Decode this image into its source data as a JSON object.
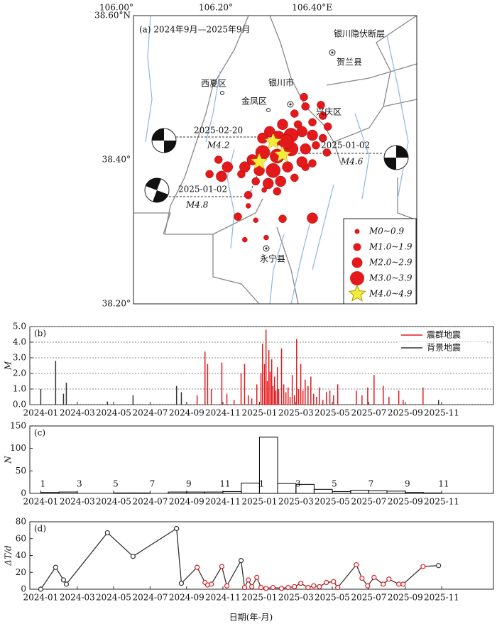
{
  "chart_data": [
    {
      "type": "scatter",
      "title": "(a) 2024年9月—2025年9月",
      "xlim": [
        106.0,
        106.57
      ],
      "ylim": [
        38.2,
        38.6
      ],
      "xticks": [
        {
          "value": 106.0,
          "label": "106.00°"
        },
        {
          "value": 106.2,
          "label": "106.20°"
        },
        {
          "value": 106.4,
          "label": "106.40°E"
        }
      ],
      "yticks": [
        {
          "value": 38.6,
          "label": "38.60°N"
        },
        {
          "value": 38.4,
          "label": "38.40°"
        },
        {
          "value": 38.2,
          "label": "38.20°"
        }
      ],
      "place_labels": [
        "银川隐伏断层",
        "贺兰县",
        "西夏区",
        "银川市",
        "金凤区",
        "兴庆区",
        "永宁县"
      ],
      "event_labels": [
        "2025-02-20",
        "M4.2",
        "2025-01-02",
        "M4.6",
        "2025-01-02",
        "M4.8"
      ],
      "legend": "lower right",
      "series": [
        {
          "name": "M0~0.9",
          "color": "#e3191c",
          "x": [
            106.231,
            106.246,
            106.224,
            106.267,
            106.263
          ],
          "y": [
            38.336,
            38.316,
            38.289,
            38.292,
            38.358
          ]
        },
        {
          "name": "M1.0~1.9",
          "color": "#e3191c",
          "x": [
            106.343,
            106.346,
            106.377,
            106.381,
            106.36,
            106.324,
            106.331,
            106.381,
            106.367,
            106.36,
            106.324,
            106.246,
            106.217,
            106.171,
            106.153,
            106.21,
            106.3,
            106.346,
            106.389,
            106.289,
            106.231,
            106.391
          ],
          "y": [
            38.487,
            38.474,
            38.476,
            38.461,
            38.452,
            38.464,
            38.449,
            38.43,
            38.42,
            38.395,
            38.375,
            38.37,
            38.38,
            38.4,
            38.38,
            38.321,
            38.318,
            38.39,
            38.41,
            38.356,
            38.351,
            38.446
          ]
        },
        {
          "name": "M2.0~2.9",
          "color": "#e3191c",
          "x": [
            106.3,
            106.274,
            106.26,
            106.339,
            106.36,
            106.346,
            106.239,
            106.224,
            106.253,
            106.31,
            106.339,
            106.296,
            106.271,
            106.189,
            106.177,
            106.36
          ],
          "y": [
            38.449,
            38.439,
            38.43,
            38.439,
            38.434,
            38.415,
            38.4,
            38.39,
            38.385,
            38.39,
            38.397,
            38.37,
            38.367,
            38.39,
            38.377,
            38.319
          ]
        },
        {
          "name": "M3.0~3.9",
          "color": "#e3191c",
          "x": [
            106.291,
            106.317,
            106.317,
            106.289,
            106.26,
            106.281,
            106.307
          ],
          "y": [
            38.43,
            38.434,
            38.415,
            38.405,
            38.41,
            38.385,
            38.425
          ]
        },
        {
          "name": "M4.0~4.9",
          "color": "#f2ee3a",
          "x": [
            106.281,
            106.3,
            106.253
          ],
          "y": [
            38.425,
            38.407,
            38.397
          ]
        }
      ]
    },
    {
      "type": "bar",
      "title": "(b)",
      "ylabel": "M",
      "xlim": [
        2023.95,
        2026.07
      ],
      "ylim": [
        0,
        5
      ],
      "xticks": [
        {
          "value": 2024.0,
          "label": "2024-01"
        },
        {
          "value": 2024.167,
          "label": "2024-03"
        },
        {
          "value": 2024.333,
          "label": "2024-05"
        },
        {
          "value": 2024.5,
          "label": "2024-07"
        },
        {
          "value": 2024.667,
          "label": "2024-09"
        },
        {
          "value": 2024.833,
          "label": "2024-11"
        },
        {
          "value": 2025.0,
          "label": "2025-01"
        },
        {
          "value": 2025.167,
          "label": "2025-03"
        },
        {
          "value": 2025.333,
          "label": "2025-05"
        },
        {
          "value": 2025.5,
          "label": "2025-07"
        },
        {
          "value": 2025.667,
          "label": "2025-09"
        },
        {
          "value": 2025.833,
          "label": "2025-11"
        }
      ],
      "yticks": [
        {
          "value": 0,
          "label": "0.0"
        },
        {
          "value": 1,
          "label": "1.0"
        },
        {
          "value": 2,
          "label": "2.0"
        },
        {
          "value": 3,
          "label": "3.0"
        },
        {
          "value": 4,
          "label": "4.0"
        },
        {
          "value": 5,
          "label": "5.0"
        }
      ],
      "grid": true,
      "legend": "upper right",
      "series": [
        {
          "name": "震群地震",
          "color": "#e3191c",
          "x": [
            2024.715,
            2024.751,
            2024.763,
            2024.78,
            2024.828,
            2024.851,
            2024.884,
            2024.916,
            2024.932,
            2024.949,
            2024.965,
            2024.988,
            2025.007,
            2025.014,
            2025.023,
            2025.03,
            2025.036,
            2025.043,
            2025.049,
            2025.056,
            2025.062,
            2025.069,
            2025.075,
            2025.082,
            2025.088,
            2025.101,
            2025.111,
            2025.121,
            2025.131,
            2025.14,
            2025.15,
            2025.16,
            2025.17,
            2025.179,
            2025.189,
            2025.199,
            2025.209,
            2025.222,
            2025.235,
            2025.248,
            2025.261,
            2025.274,
            2025.29,
            2025.306,
            2025.322,
            2025.339,
            2025.358,
            2025.443,
            2025.469,
            2025.495,
            2025.524,
            2025.566,
            2025.592,
            2025.637,
            2025.657,
            2025.748
          ],
          "values": [
            0.6,
            3.4,
            2.6,
            1.0,
            2.7,
            0.7,
            0.3,
            2.0,
            2.6,
            0.6,
            0.4,
            1.3,
            2.0,
            3.9,
            2.6,
            4.8,
            1.5,
            3.5,
            2.1,
            2.9,
            1.2,
            1.8,
            0.9,
            2.4,
            1.0,
            3.6,
            1.3,
            0.8,
            1.1,
            0.5,
            1.9,
            0.6,
            4.2,
            1.0,
            2.6,
            0.9,
            1.6,
            1.2,
            1.8,
            0.7,
            0.5,
            1.1,
            0.3,
            0.8,
            0.9,
            0.6,
            1.3,
            0.9,
            0.6,
            1.1,
            1.9,
            1.2,
            0.5,
            0.9,
            0.3,
            1.1
          ]
        },
        {
          "name": "背景地震",
          "color": "#333333",
          "x": [
            2024.0,
            2024.068,
            2024.104,
            2024.117,
            2024.305,
            2024.422,
            2024.621,
            2024.643,
            2025.819
          ],
          "values": [
            1.0,
            2.8,
            0.7,
            1.4,
            0.2,
            0.6,
            1.2,
            0.8,
            0.3
          ]
        }
      ]
    },
    {
      "type": "histogram",
      "title": "(c)",
      "ylabel": "N",
      "color": "#000000",
      "xlim": [
        2023.95,
        2026.07
      ],
      "ylim": [
        0,
        150
      ],
      "xticks": [
        {
          "value": 2024.0,
          "label": "2024-01"
        },
        {
          "value": 2024.167,
          "label": "2024-03"
        },
        {
          "value": 2024.333,
          "label": "2024-05"
        },
        {
          "value": 2024.5,
          "label": "2024-07"
        },
        {
          "value": 2024.667,
          "label": "2024-09"
        },
        {
          "value": 2024.833,
          "label": "2024-11"
        },
        {
          "value": 2025.0,
          "label": "2025-01"
        },
        {
          "value": 2025.167,
          "label": "2025-03"
        },
        {
          "value": 2025.333,
          "label": "2025-05"
        },
        {
          "value": 2025.5,
          "label": "2025-07"
        },
        {
          "value": 2025.667,
          "label": "2025-09"
        },
        {
          "value": 2025.833,
          "label": "2025-11"
        }
      ],
      "yticks": [
        0,
        50,
        100,
        150
      ],
      "bins": [
        2024.0,
        2024.083,
        2024.167,
        2024.25,
        2024.333,
        2024.417,
        2024.5,
        2024.583,
        2024.667,
        2024.75,
        2024.833,
        2024.917,
        2025.0,
        2025.083,
        2025.167,
        2025.25,
        2025.333,
        2025.417,
        2025.5,
        2025.583,
        2025.667,
        2025.75,
        2025.833,
        2025.917
      ],
      "values": [
        2,
        3,
        0,
        0,
        1,
        1,
        0,
        3,
        3,
        3,
        4,
        23,
        125,
        22,
        20,
        9,
        4,
        7,
        6,
        5,
        2,
        1,
        0
      ],
      "bin_labels": [
        {
          "value": 2024.0,
          "label": "1"
        },
        {
          "value": 2024.167,
          "label": "3"
        },
        {
          "value": 2024.333,
          "label": "5"
        },
        {
          "value": 2024.5,
          "label": "7"
        },
        {
          "value": 2024.667,
          "label": "9"
        },
        {
          "value": 2024.833,
          "label": "11"
        },
        {
          "value": 2025.0,
          "label": "1"
        },
        {
          "value": 2025.167,
          "label": "3"
        },
        {
          "value": 2025.333,
          "label": "5"
        },
        {
          "value": 2025.5,
          "label": "7"
        },
        {
          "value": 2025.667,
          "label": "9"
        },
        {
          "value": 2025.833,
          "label": "11"
        }
      ]
    },
    {
      "type": "line",
      "title": "(d)",
      "ylabel": "ΔT/d",
      "xlabel": "日期(年-月)",
      "color": "#333333",
      "xlim": [
        2023.95,
        2026.07
      ],
      "ylim": [
        0,
        80
      ],
      "xticks": [
        {
          "value": 2024.0,
          "label": "2024-01"
        },
        {
          "value": 2024.167,
          "label": "2024-03"
        },
        {
          "value": 2024.333,
          "label": "2024-05"
        },
        {
          "value": 2024.5,
          "label": "2024-07"
        },
        {
          "value": 2024.667,
          "label": "2024-09"
        },
        {
          "value": 2024.833,
          "label": "2024-11"
        },
        {
          "value": 2025.0,
          "label": "2025-01"
        },
        {
          "value": 2025.167,
          "label": "2025-03"
        },
        {
          "value": 2025.333,
          "label": "2025-05"
        },
        {
          "value": 2025.5,
          "label": "2025-07"
        },
        {
          "value": 2025.667,
          "label": "2025-09"
        },
        {
          "value": 2025.833,
          "label": "2025-11"
        }
      ],
      "yticks": [
        0,
        20,
        40,
        60,
        80
      ],
      "x": [
        2024.0,
        2024.068,
        2024.104,
        2024.117,
        2024.305,
        2024.422,
        2024.621,
        2024.643,
        2024.715,
        2024.751,
        2024.763,
        2024.78,
        2024.828,
        2024.851,
        2024.916,
        2024.932,
        2024.949,
        2024.965,
        2024.988,
        2025.007,
        2025.03,
        2025.062,
        2025.101,
        2025.131,
        2025.16,
        2025.189,
        2025.222,
        2025.248,
        2025.274,
        2025.306,
        2025.339,
        2025.358,
        2025.443,
        2025.469,
        2025.495,
        2025.524,
        2025.566,
        2025.592,
        2025.637,
        2025.657,
        2025.748,
        2025.819
      ],
      "values": [
        0,
        26,
        11,
        6,
        67,
        39,
        72,
        7,
        26,
        8,
        5,
        6,
        27,
        4,
        34,
        2,
        11,
        3,
        14,
        2,
        1,
        2,
        1,
        2,
        3,
        7,
        2,
        4,
        3,
        8,
        9,
        2,
        29,
        13,
        4,
        14,
        6,
        12,
        6,
        6,
        27,
        28
      ],
      "marker_colors": [
        "#333333",
        "#333333",
        "#333333",
        "#333333",
        "#333333",
        "#333333",
        "#333333",
        "#333333",
        "#e3191c",
        "#e3191c",
        "#e3191c",
        "#e3191c",
        "#e3191c",
        "#e3191c",
        "#333333",
        "#e3191c",
        "#e3191c",
        "#e3191c",
        "#e3191c",
        "#e3191c",
        "#e3191c",
        "#e3191c",
        "#e3191c",
        "#e3191c",
        "#e3191c",
        "#e3191c",
        "#e3191c",
        "#e3191c",
        "#e3191c",
        "#e3191c",
        "#e3191c",
        "#e3191c",
        "#e3191c",
        "#e3191c",
        "#e3191c",
        "#e3191c",
        "#e3191c",
        "#e3191c",
        "#e3191c",
        "#e3191c",
        "#e3191c",
        "#333333"
      ]
    }
  ]
}
